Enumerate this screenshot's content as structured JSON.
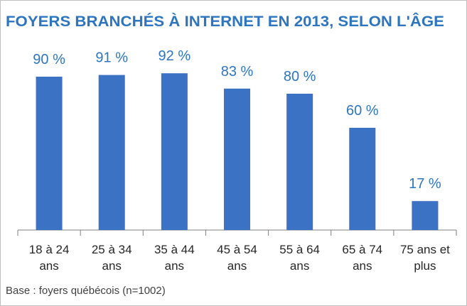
{
  "chart_data": {
    "type": "bar",
    "title": "FOYERS BRANCHÉS À INTERNET EN 2013, SELON L'ÂGE",
    "categories": [
      "18 à 24 ans",
      "25 à 34 ans",
      "35 à 44 ans",
      "45 à 54 ans",
      "55 à 64 ans",
      "65 à 74 ans",
      "75 ans et plus"
    ],
    "values": [
      90,
      91,
      92,
      83,
      80,
      60,
      17
    ],
    "value_labels": [
      "90 %",
      "91 %",
      "92 %",
      "83 %",
      "80 %",
      "60 %",
      "17 %"
    ],
    "color": "#3b72c4",
    "ylim": [
      0,
      100
    ],
    "footnote": "Base : foyers québécois (n=1002)"
  }
}
